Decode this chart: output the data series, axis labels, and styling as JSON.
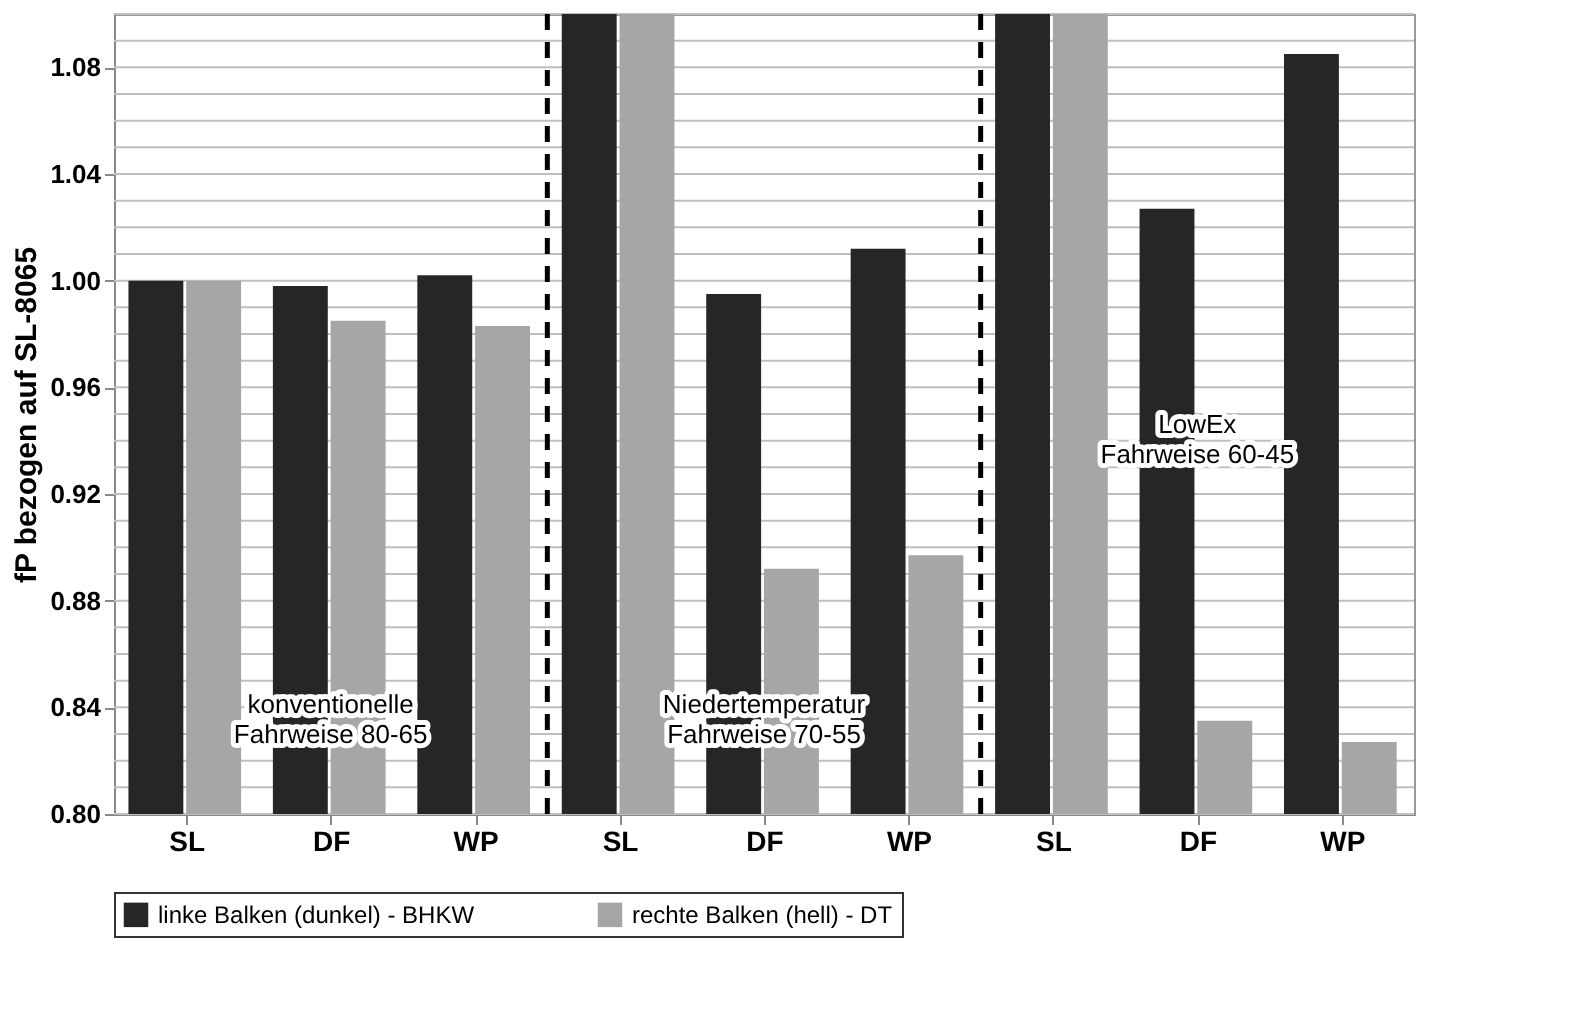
{
  "chart_data": {
    "type": "bar",
    "ylabel": "fP bezogen auf SL-8065",
    "categories": [
      "SL",
      "DF",
      "WP",
      "SL",
      "DF",
      "WP",
      "SL",
      "DF",
      "WP"
    ],
    "series": [
      {
        "name": "linke Balken (dunkel) - BHKW",
        "color": "#262626",
        "values": [
          1.0,
          0.998,
          1.002,
          1.1,
          0.995,
          1.012,
          1.1,
          1.027,
          1.085
        ]
      },
      {
        "name": "rechte Balken (hell) - DT",
        "color": "#a6a6a6",
        "values": [
          1.0,
          0.985,
          0.983,
          1.1,
          0.892,
          0.897,
          1.1,
          0.835,
          0.827
        ]
      }
    ],
    "ylim": [
      0.8,
      1.1
    ],
    "yticks": [
      {
        "value": 0.8,
        "label": "0.80"
      },
      {
        "value": 0.81,
        "label": null
      },
      {
        "value": 0.82,
        "label": null
      },
      {
        "value": 0.83,
        "label": null
      },
      0.84,
      {
        "value": 0.85,
        "label": null
      },
      {
        "value": 0.86,
        "label": null
      },
      {
        "value": 0.87,
        "label": null
      },
      0.88,
      {
        "value": 0.89,
        "label": null
      },
      {
        "value": 0.9,
        "label": null
      },
      {
        "value": 0.91,
        "label": null
      },
      0.92,
      {
        "value": 0.93,
        "label": null
      },
      {
        "value": 0.94,
        "label": null
      },
      {
        "value": 0.95,
        "label": null
      },
      0.96,
      {
        "value": 0.97,
        "label": null
      },
      {
        "value": 0.98,
        "label": null
      },
      {
        "value": 0.99,
        "label": null
      },
      {
        "value": 1.0,
        "label": "1.00"
      },
      {
        "value": 1.01,
        "label": null
      },
      {
        "value": 1.02,
        "label": null
      },
      {
        "value": 1.03,
        "label": null
      },
      1.04,
      {
        "value": 1.05,
        "label": null
      },
      {
        "value": 1.06,
        "label": null
      },
      {
        "value": 1.07,
        "label": null
      },
      1.08,
      {
        "value": 1.09,
        "label": null
      },
      {
        "value": 1.1,
        "label": null
      }
    ],
    "grid": "y",
    "legend": "bottom",
    "annotations": [
      "konventionelle\nFahrweise 80-65",
      "Niedertemperatur\nFahrweise 70-55",
      "LowEx\nFahrweise 60-45"
    ]
  }
}
